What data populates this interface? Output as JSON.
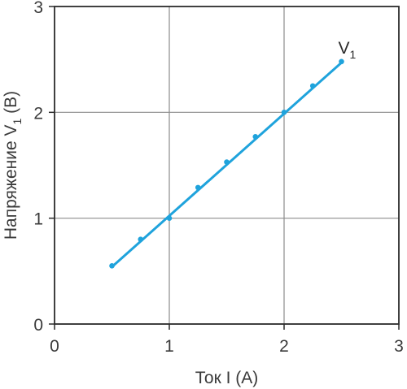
{
  "chart_data": {
    "type": "scatter",
    "title": "",
    "xlabel": "Ток I (А)",
    "ylabel": {
      "text": "Напряжение V",
      "subscript": "1",
      "suffix": " (В)"
    },
    "xlim": [
      0,
      3
    ],
    "ylim": [
      0,
      3
    ],
    "xticks": [
      "0",
      "1",
      "2",
      "3"
    ],
    "yticks": [
      "0",
      "1",
      "2",
      "3"
    ],
    "grid": true,
    "series": [
      {
        "label": {
          "text": "V",
          "subscript": "1"
        },
        "color": "#1fa3dc",
        "points": [
          {
            "x": 0.5,
            "y": 0.55
          },
          {
            "x": 0.75,
            "y": 0.8
          },
          {
            "x": 1.0,
            "y": 1.0
          },
          {
            "x": 1.25,
            "y": 1.29
          },
          {
            "x": 1.5,
            "y": 1.53
          },
          {
            "x": 1.75,
            "y": 1.77
          },
          {
            "x": 2.0,
            "y": 2.0
          },
          {
            "x": 2.25,
            "y": 2.25
          },
          {
            "x": 2.5,
            "y": 2.48
          }
        ],
        "fit_line": [
          {
            "x": 0.5,
            "y": 0.54
          },
          {
            "x": 2.5,
            "y": 2.47
          }
        ]
      }
    ]
  }
}
